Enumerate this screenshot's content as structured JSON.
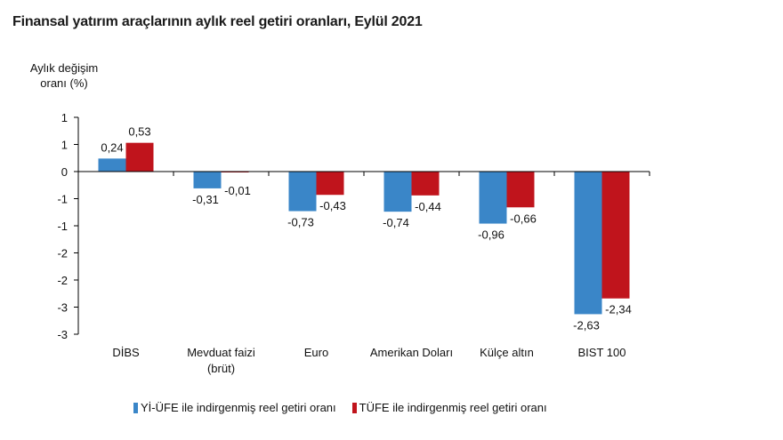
{
  "title": "Finansal yatırım araçlarının aylık reel getiri oranları, Eylül 2021",
  "chart_data": {
    "type": "bar",
    "title": "Finansal yatırım araçlarının aylık reel getiri oranları, Eylül 2021",
    "ylabel_lines": [
      "Aylık değişim",
      "oranı (%)"
    ],
    "categories": [
      [
        "DİBS"
      ],
      [
        "Mevduat faizi",
        "(brüt)"
      ],
      [
        "Euro"
      ],
      [
        "Amerikan Doları"
      ],
      [
        "Külçe altın"
      ],
      [
        "BIST 100"
      ]
    ],
    "yticks": [
      {
        "value": 1,
        "label": "1"
      },
      {
        "value": 0.5,
        "label": "1"
      },
      {
        "value": 0,
        "label": "0"
      },
      {
        "value": -0.5,
        "label": "-1"
      },
      {
        "value": -1,
        "label": "-1"
      },
      {
        "value": -1.5,
        "label": "-2"
      },
      {
        "value": -2,
        "label": "-2"
      },
      {
        "value": -2.5,
        "label": "-3"
      },
      {
        "value": -3,
        "label": "-3"
      }
    ],
    "ylim": [
      -3,
      1
    ],
    "grid": false,
    "legend_position": "bottom",
    "series": [
      {
        "name": "Yİ-ÜFE ile indirgenmiş reel getiri oranı",
        "color": "#3a86c8",
        "values": [
          0.24,
          -0.31,
          -0.73,
          -0.74,
          -0.96,
          -2.63
        ],
        "labels": [
          "0,24",
          "-0,31",
          "-0,73",
          "-0,74",
          "-0,96",
          "-2,63"
        ]
      },
      {
        "name": "TÜFE ile indirgenmiş reel getiri oranı",
        "color": "#c0141c",
        "values": [
          0.53,
          -0.01,
          -0.43,
          -0.44,
          -0.66,
          -2.34
        ],
        "labels": [
          "0,53",
          "-0,01",
          "-0,43",
          "-0,44",
          "-0,66",
          "-2,34"
        ]
      }
    ]
  }
}
